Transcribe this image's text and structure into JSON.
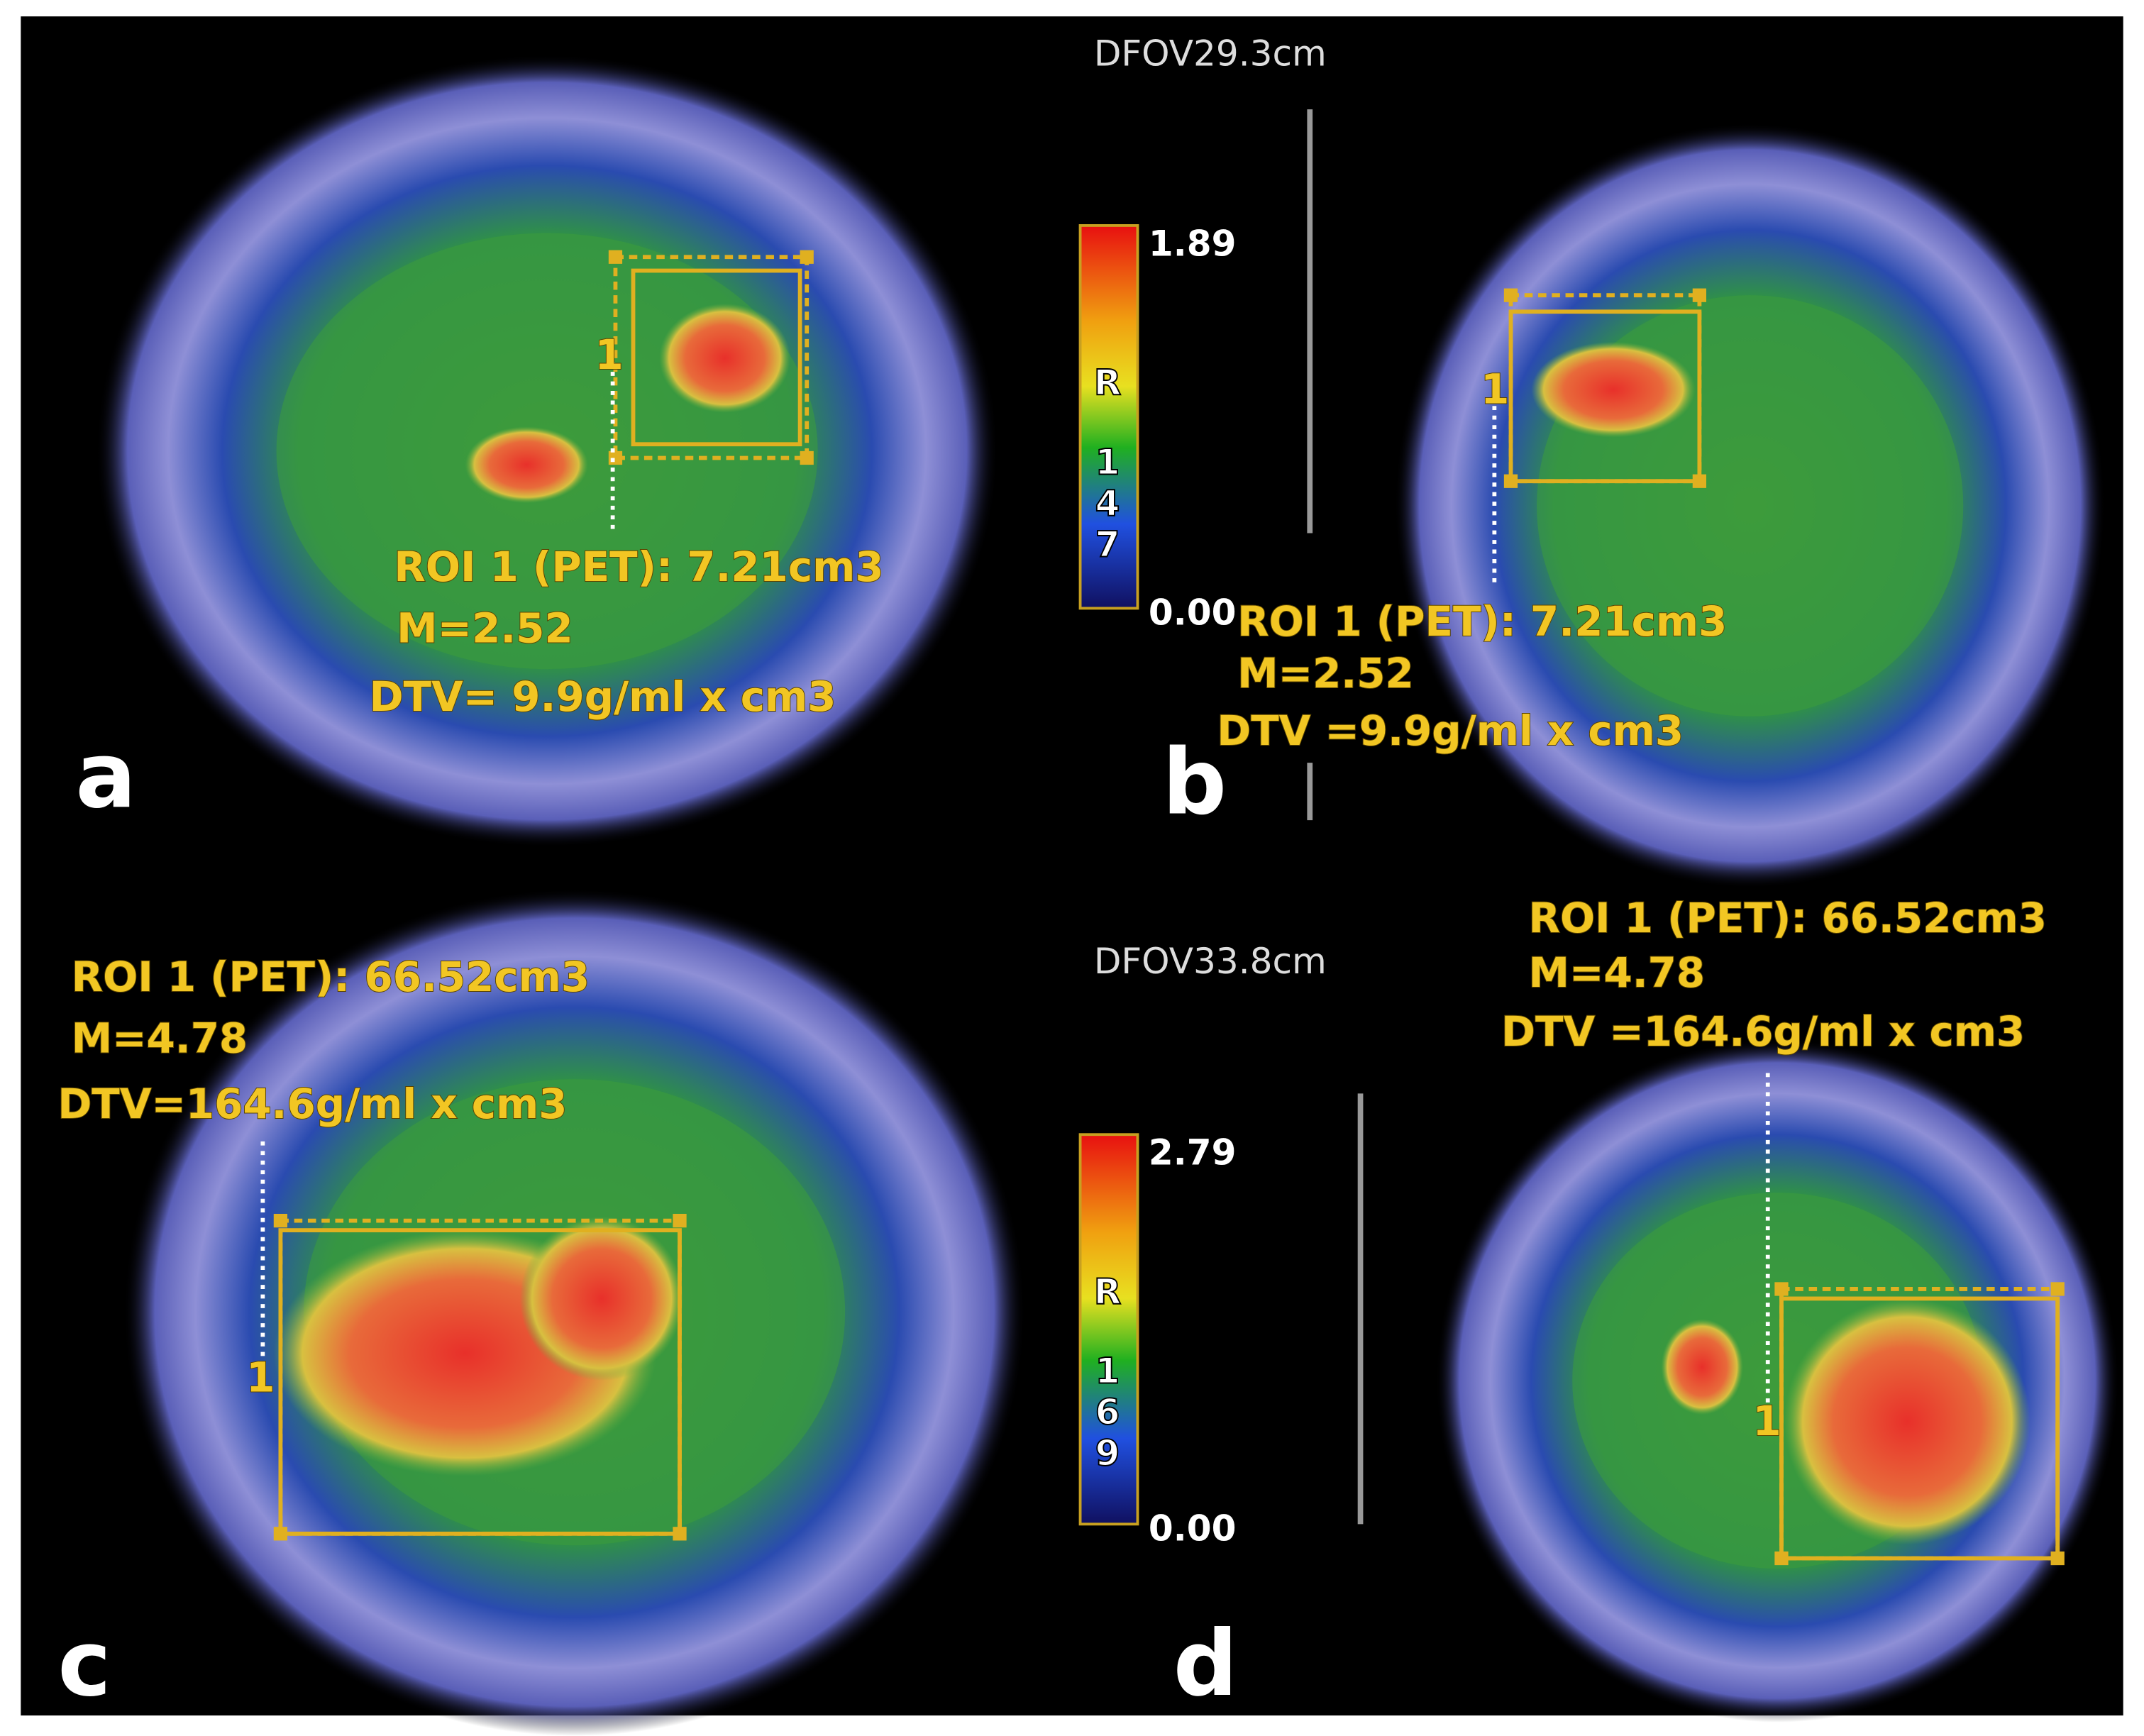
{
  "panels": [
    {
      "label": "a",
      "roi": "ROI 1 (PET): 7.21cm3",
      "mean": "M=2.52",
      "dtv": "DTV= 9.9g/ml x cm3",
      "marker": "1"
    },
    {
      "label": "b",
      "roi": "ROI 1 (PET): 7.21cm3",
      "mean": "M=2.52",
      "dtv": "DTV =9.9g/ml x cm3",
      "marker": "1"
    },
    {
      "label": "c",
      "roi": "ROI 1 (PET): 66.52cm3",
      "mean": "M=4.78",
      "dtv": "DTV=164.6g/ml x cm3",
      "marker": "1"
    },
    {
      "label": "d",
      "roi": "ROI 1 (PET): 66.52cm3",
      "mean": "M=4.78",
      "dtv": "DTV =164.6g/ml x cm3",
      "marker": "1"
    }
  ],
  "scales": [
    {
      "dfov": "DFOV29.3cm",
      "max": "1.89",
      "min": "0.00",
      "letter": "R",
      "code": "147"
    },
    {
      "dfov": "DFOV33.8cm",
      "max": "2.79",
      "min": "0.00",
      "letter": "R",
      "code": "169"
    }
  ]
}
